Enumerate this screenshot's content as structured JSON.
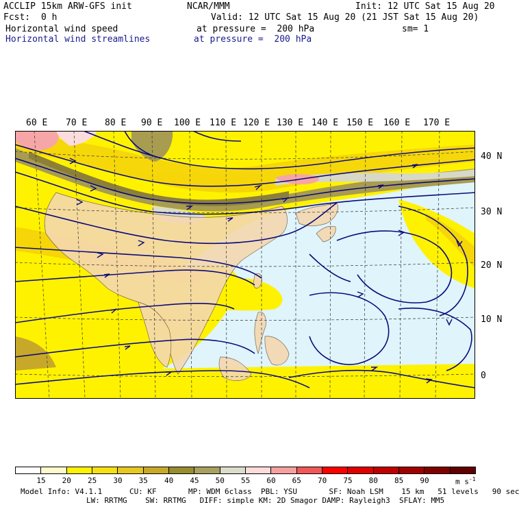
{
  "header": {
    "model": "ACCLIP 15km ARW-GFS init",
    "center": "NCAR/MMM",
    "init": "Init: 12 UTC Sat 15 Aug 20",
    "fcst_label": "Fcst:",
    "fcst_value": "0 h",
    "valid": "Valid: 12 UTC Sat 15 Aug 20 (21 JST Sat 15 Aug 20)",
    "field1": "Horizontal wind speed",
    "field1_level": "at pressure =  200 hPa",
    "sm": "sm= 1",
    "field2": "Horizontal wind streamlines",
    "field2_level": "at pressure =  200 hPa",
    "field2_color": "#1a1a8c"
  },
  "map": {
    "lon_labels": [
      "60 E",
      "70 E",
      "80 E",
      "90 E",
      "100 E",
      "110 E",
      "120 E",
      "130 E",
      "140 E",
      "150 E",
      "160 E",
      "170 E"
    ],
    "lat_labels": [
      "40 N",
      "30 N",
      "20 N",
      "10 N",
      "0"
    ],
    "streamline_color": "#0a0a7a"
  },
  "colorbar": {
    "labels": [
      "15",
      "20",
      "25",
      "30",
      "35",
      "40",
      "45",
      "50",
      "55",
      "60",
      "65",
      "70",
      "75",
      "80",
      "85",
      "90"
    ],
    "colors": [
      "#ffffff",
      "#fffacc",
      "#fff200",
      "#f8e010",
      "#e8c820",
      "#c8a828",
      "#988c30",
      "#a8a060",
      "#dcdccc",
      "#ffdcdc",
      "#f8a0a0",
      "#f05858",
      "#ff0000",
      "#e00000",
      "#c00000",
      "#a00000",
      "#800000",
      "#600000"
    ],
    "unit": "m s",
    "unit_exp": "-1"
  },
  "footer": {
    "line1": "Model Info: V4.1.1      CU: KF       MP: WDM 6class  PBL: YSU       SF: Noah LSM    15 km   51 levels   90 sec",
    "line2": "LW: RRTMG    SW: RRTMG   DIFF: simple KM: 2D Smagor DAMP: Rayleigh3  SFLAY: MM5"
  }
}
